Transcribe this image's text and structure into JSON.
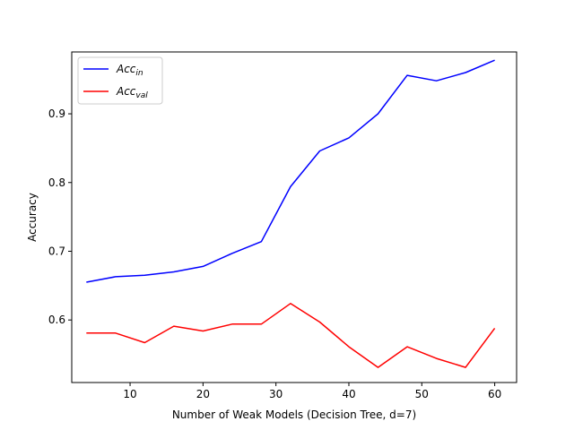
{
  "chart_data": {
    "type": "line",
    "xlabel": "Number of Weak Models (Decision Tree, d=7)",
    "ylabel": "Accuracy",
    "xlim": [
      2,
      63
    ],
    "ylim": [
      0.509,
      0.99
    ],
    "xticks": [
      10,
      20,
      30,
      40,
      50,
      60
    ],
    "yticks": [
      0.6,
      0.7,
      0.8,
      0.9
    ],
    "legend_position": "top-left",
    "grid": false,
    "x": [
      4,
      8,
      12,
      16,
      20,
      24,
      28,
      32,
      36,
      40,
      44,
      48,
      52,
      56,
      60
    ],
    "series": [
      {
        "name": "Acc_in",
        "name_base": "Acc",
        "name_sub": "in",
        "color": "#0000ff",
        "values": [
          0.655,
          0.663,
          0.665,
          0.67,
          0.678,
          0.697,
          0.714,
          0.794,
          0.846,
          0.865,
          0.9,
          0.956,
          0.948,
          0.96,
          0.978
        ]
      },
      {
        "name": "Acc_val",
        "name_base": "Acc",
        "name_sub": "val",
        "color": "#ff0000",
        "values": [
          0.581,
          0.581,
          0.567,
          0.591,
          0.584,
          0.594,
          0.594,
          0.624,
          0.597,
          0.561,
          0.531,
          0.561,
          0.544,
          0.531,
          0.588
        ]
      }
    ]
  }
}
